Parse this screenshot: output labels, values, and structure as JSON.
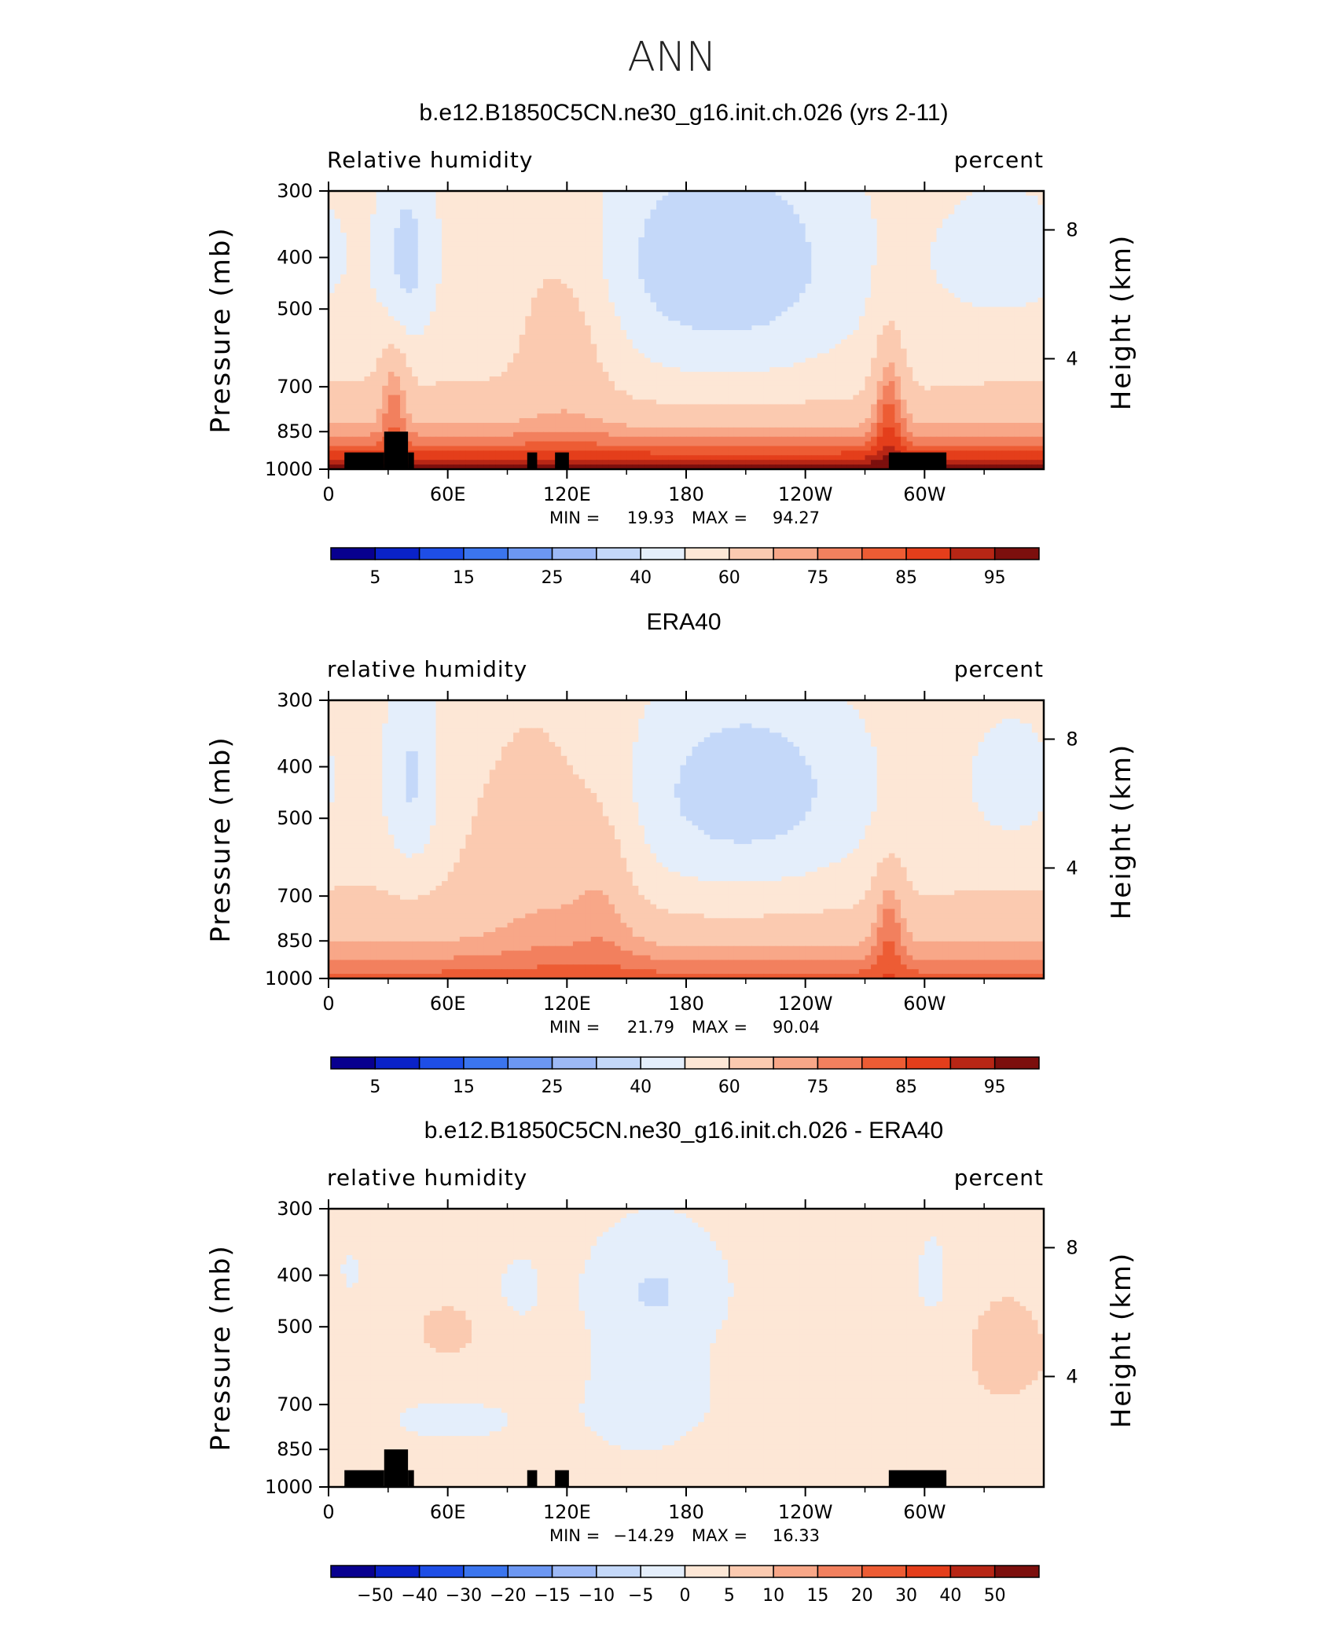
{
  "figure": {
    "title": "ANN"
  },
  "chart_data": [
    {
      "type": "heatmap",
      "title": "b.e12.B1850C5CN.ne30_g16.init.ch.026 (yrs 2-11)",
      "left_label": "Relative humidity",
      "right_label": "percent",
      "ylabel": "Pressure (mb)",
      "ylabel_right": "Height (km)",
      "xticks": [
        "0",
        "60E",
        "120E",
        "180",
        "120W",
        "60W"
      ],
      "yticks": [
        "300",
        "400",
        "500",
        "700",
        "850",
        "1000"
      ],
      "yticks_right": [
        "8",
        "4"
      ],
      "xlim": [
        0,
        360
      ],
      "ylim": [
        1000,
        300
      ],
      "y_scale": "log",
      "stats": {
        "min_label": "MIN =",
        "min": "19.93",
        "max_label": "MAX =",
        "max": "94.27"
      },
      "colorbar": {
        "labels": [
          "5",
          "15",
          "25",
          "40",
          "60",
          "75",
          "85",
          "95"
        ],
        "colors": [
          "#08008f",
          "#0a22c8",
          "#1e4ee6",
          "#3b75ee",
          "#6c97f2",
          "#9db9f6",
          "#c4d8f9",
          "#e4eefb",
          "#fde7d6",
          "#fbcab0",
          "#f8a788",
          "#f2805e",
          "#ed5c34",
          "#e43e1b",
          "#b72615",
          "#7c0f0d"
        ]
      },
      "topography": true
    },
    {
      "type": "heatmap",
      "title": "ERA40",
      "left_label": "relative humidity",
      "right_label": "percent",
      "ylabel": "Pressure (mb)",
      "ylabel_right": "Height (km)",
      "xticks": [
        "0",
        "60E",
        "120E",
        "180",
        "120W",
        "60W"
      ],
      "yticks": [
        "300",
        "400",
        "500",
        "700",
        "850",
        "1000"
      ],
      "yticks_right": [
        "8",
        "4"
      ],
      "xlim": [
        0,
        360
      ],
      "ylim": [
        1000,
        300
      ],
      "y_scale": "log",
      "stats": {
        "min_label": "MIN =",
        "min": "21.79",
        "max_label": "MAX =",
        "max": "90.04"
      },
      "colorbar": {
        "labels": [
          "5",
          "15",
          "25",
          "40",
          "60",
          "75",
          "85",
          "95"
        ],
        "colors": [
          "#08008f",
          "#0a22c8",
          "#1e4ee6",
          "#3b75ee",
          "#6c97f2",
          "#9db9f6",
          "#c4d8f9",
          "#e4eefb",
          "#fde7d6",
          "#fbcab0",
          "#f8a788",
          "#f2805e",
          "#ed5c34",
          "#e43e1b",
          "#b72615",
          "#7c0f0d"
        ]
      },
      "topography": false
    },
    {
      "type": "heatmap",
      "title": "b.e12.B1850C5CN.ne30_g16.init.ch.026 - ERA40",
      "left_label": "relative humidity",
      "right_label": "percent",
      "ylabel": "Pressure (mb)",
      "ylabel_right": "Height (km)",
      "xticks": [
        "0",
        "60E",
        "120E",
        "180",
        "120W",
        "60W"
      ],
      "yticks": [
        "300",
        "400",
        "500",
        "700",
        "850",
        "1000"
      ],
      "yticks_right": [
        "8",
        "4"
      ],
      "xlim": [
        0,
        360
      ],
      "ylim": [
        1000,
        300
      ],
      "y_scale": "log",
      "stats": {
        "min_label": "MIN =",
        "min": "−14.29",
        "max_label": "MAX =",
        "max": "16.33"
      },
      "colorbar": {
        "labels": [
          "−50",
          "−40",
          "−30",
          "−20",
          "−15",
          "−10",
          "−5",
          "0",
          "5",
          "10",
          "15",
          "20",
          "30",
          "40",
          "50"
        ],
        "colors": [
          "#08008f",
          "#0a22c8",
          "#1e4ee6",
          "#3b75ee",
          "#6c97f2",
          "#9db9f6",
          "#c4d8f9",
          "#e4eefb",
          "#fde7d6",
          "#fbcab0",
          "#f8a788",
          "#f2805e",
          "#ed5c34",
          "#e43e1b",
          "#b72615",
          "#7c0f0d"
        ]
      },
      "topography": true
    }
  ]
}
